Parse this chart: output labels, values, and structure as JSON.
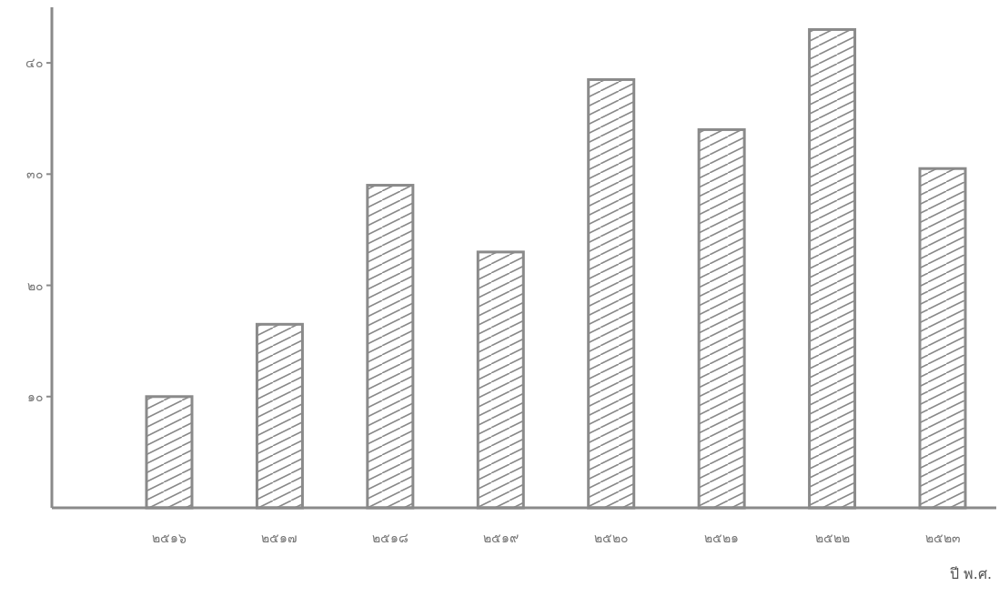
{
  "chart_data": {
    "type": "bar",
    "xlabel": "ปี พ.ศ.",
    "categories": [
      "๒๕๑๖",
      "๒๕๑๗",
      "๒๕๑๘",
      "๒๕๑๙",
      "๒๕๒๐",
      "๒๕๒๑",
      "๒๕๒๒",
      "๒๕๒๓"
    ],
    "values": [
      10,
      16.5,
      29,
      23,
      38.5,
      34,
      43,
      30.5
    ],
    "color": "#8a8a8a",
    "ylim": [
      0,
      45
    ],
    "yticks": [
      {
        "value": 10,
        "label": "๑๐"
      },
      {
        "value": 20,
        "label": "๒๐"
      },
      {
        "value": 30,
        "label": "๓๐"
      },
      {
        "value": 40,
        "label": "๔๐"
      }
    ],
    "grid": false
  }
}
